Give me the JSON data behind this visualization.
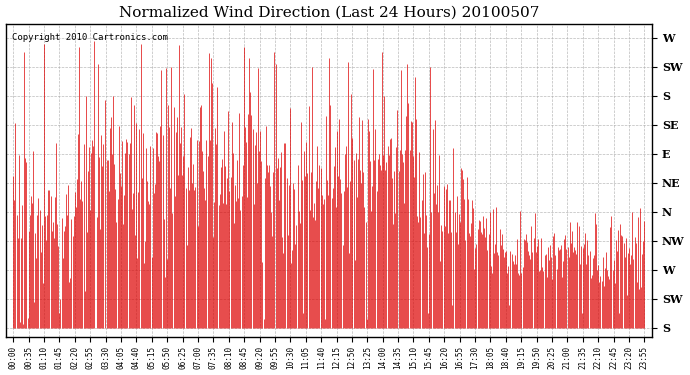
{
  "title": "Normalized Wind Direction (Last 24 Hours) 20100507",
  "copyright_text": "Copyright 2010 Cartronics.com",
  "line_color": "#dd0000",
  "background_color": "#ffffff",
  "grid_color": "#aaaaaa",
  "title_color": "#000000",
  "y_labels": [
    "W",
    "SW",
    "S",
    "SE",
    "E",
    "NE",
    "N",
    "NW",
    "W",
    "SW",
    "S"
  ],
  "y_values": [
    10,
    9,
    8,
    7,
    6,
    5,
    4,
    3,
    2,
    1,
    0
  ],
  "x_tick_labels": [
    "00:00",
    "00:35",
    "01:10",
    "01:45",
    "02:20",
    "02:55",
    "03:30",
    "04:05",
    "04:40",
    "05:15",
    "05:50",
    "06:25",
    "07:00",
    "07:35",
    "08:10",
    "08:45",
    "09:20",
    "09:55",
    "10:30",
    "11:05",
    "11:40",
    "12:15",
    "12:50",
    "13:25",
    "14:00",
    "14:35",
    "15:10",
    "15:45",
    "16:20",
    "16:55",
    "17:30",
    "18:05",
    "18:40",
    "19:15",
    "19:50",
    "20:25",
    "21:00",
    "21:35",
    "22:10",
    "22:45",
    "23:20",
    "23:55"
  ],
  "ylim": [
    -0.3,
    10.5
  ],
  "figsize": [
    6.9,
    3.75
  ],
  "dpi": 100
}
